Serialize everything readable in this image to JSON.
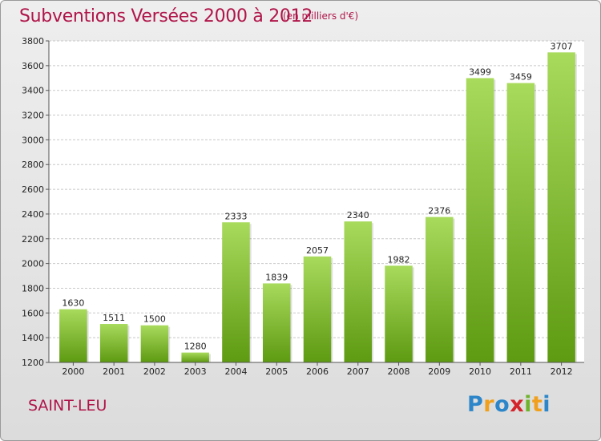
{
  "header": {
    "title": "Subventions Versées 2000 à 2012",
    "subtitle": "(en milliers d'€)"
  },
  "footer": {
    "commune": "SAINT-LEU",
    "logo": {
      "letters": [
        "P",
        "r",
        "o",
        "x",
        "i",
        "t",
        "i"
      ],
      "colors": [
        "#2c86c9",
        "#f0a01c",
        "#2c86c9",
        "#d4232b",
        "#6fb32c",
        "#f0a01c",
        "#2c86c9"
      ]
    }
  },
  "colors": {
    "title": "#b0154a",
    "bar_light": "#a3d656",
    "bar_dark": "#5e9a12",
    "grid": "#c8c8c8"
  },
  "chart_data": {
    "type": "bar",
    "title": "Subventions Versées 2000 à 2012",
    "subtitle": "(en milliers d'€)",
    "categories": [
      "2000",
      "2001",
      "2002",
      "2003",
      "2004",
      "2005",
      "2006",
      "2007",
      "2008",
      "2009",
      "2010",
      "2011",
      "2012"
    ],
    "values": [
      1630,
      1511,
      1500,
      1280,
      2333,
      1839,
      2057,
      2340,
      1982,
      2376,
      3499,
      3459,
      3707
    ],
    "ylim": [
      1200,
      3800
    ],
    "yticks": [
      1200,
      1400,
      1600,
      1800,
      2000,
      2200,
      2400,
      2600,
      2800,
      3000,
      3200,
      3400,
      3600,
      3800
    ],
    "grid": true,
    "show_value_labels": true
  }
}
